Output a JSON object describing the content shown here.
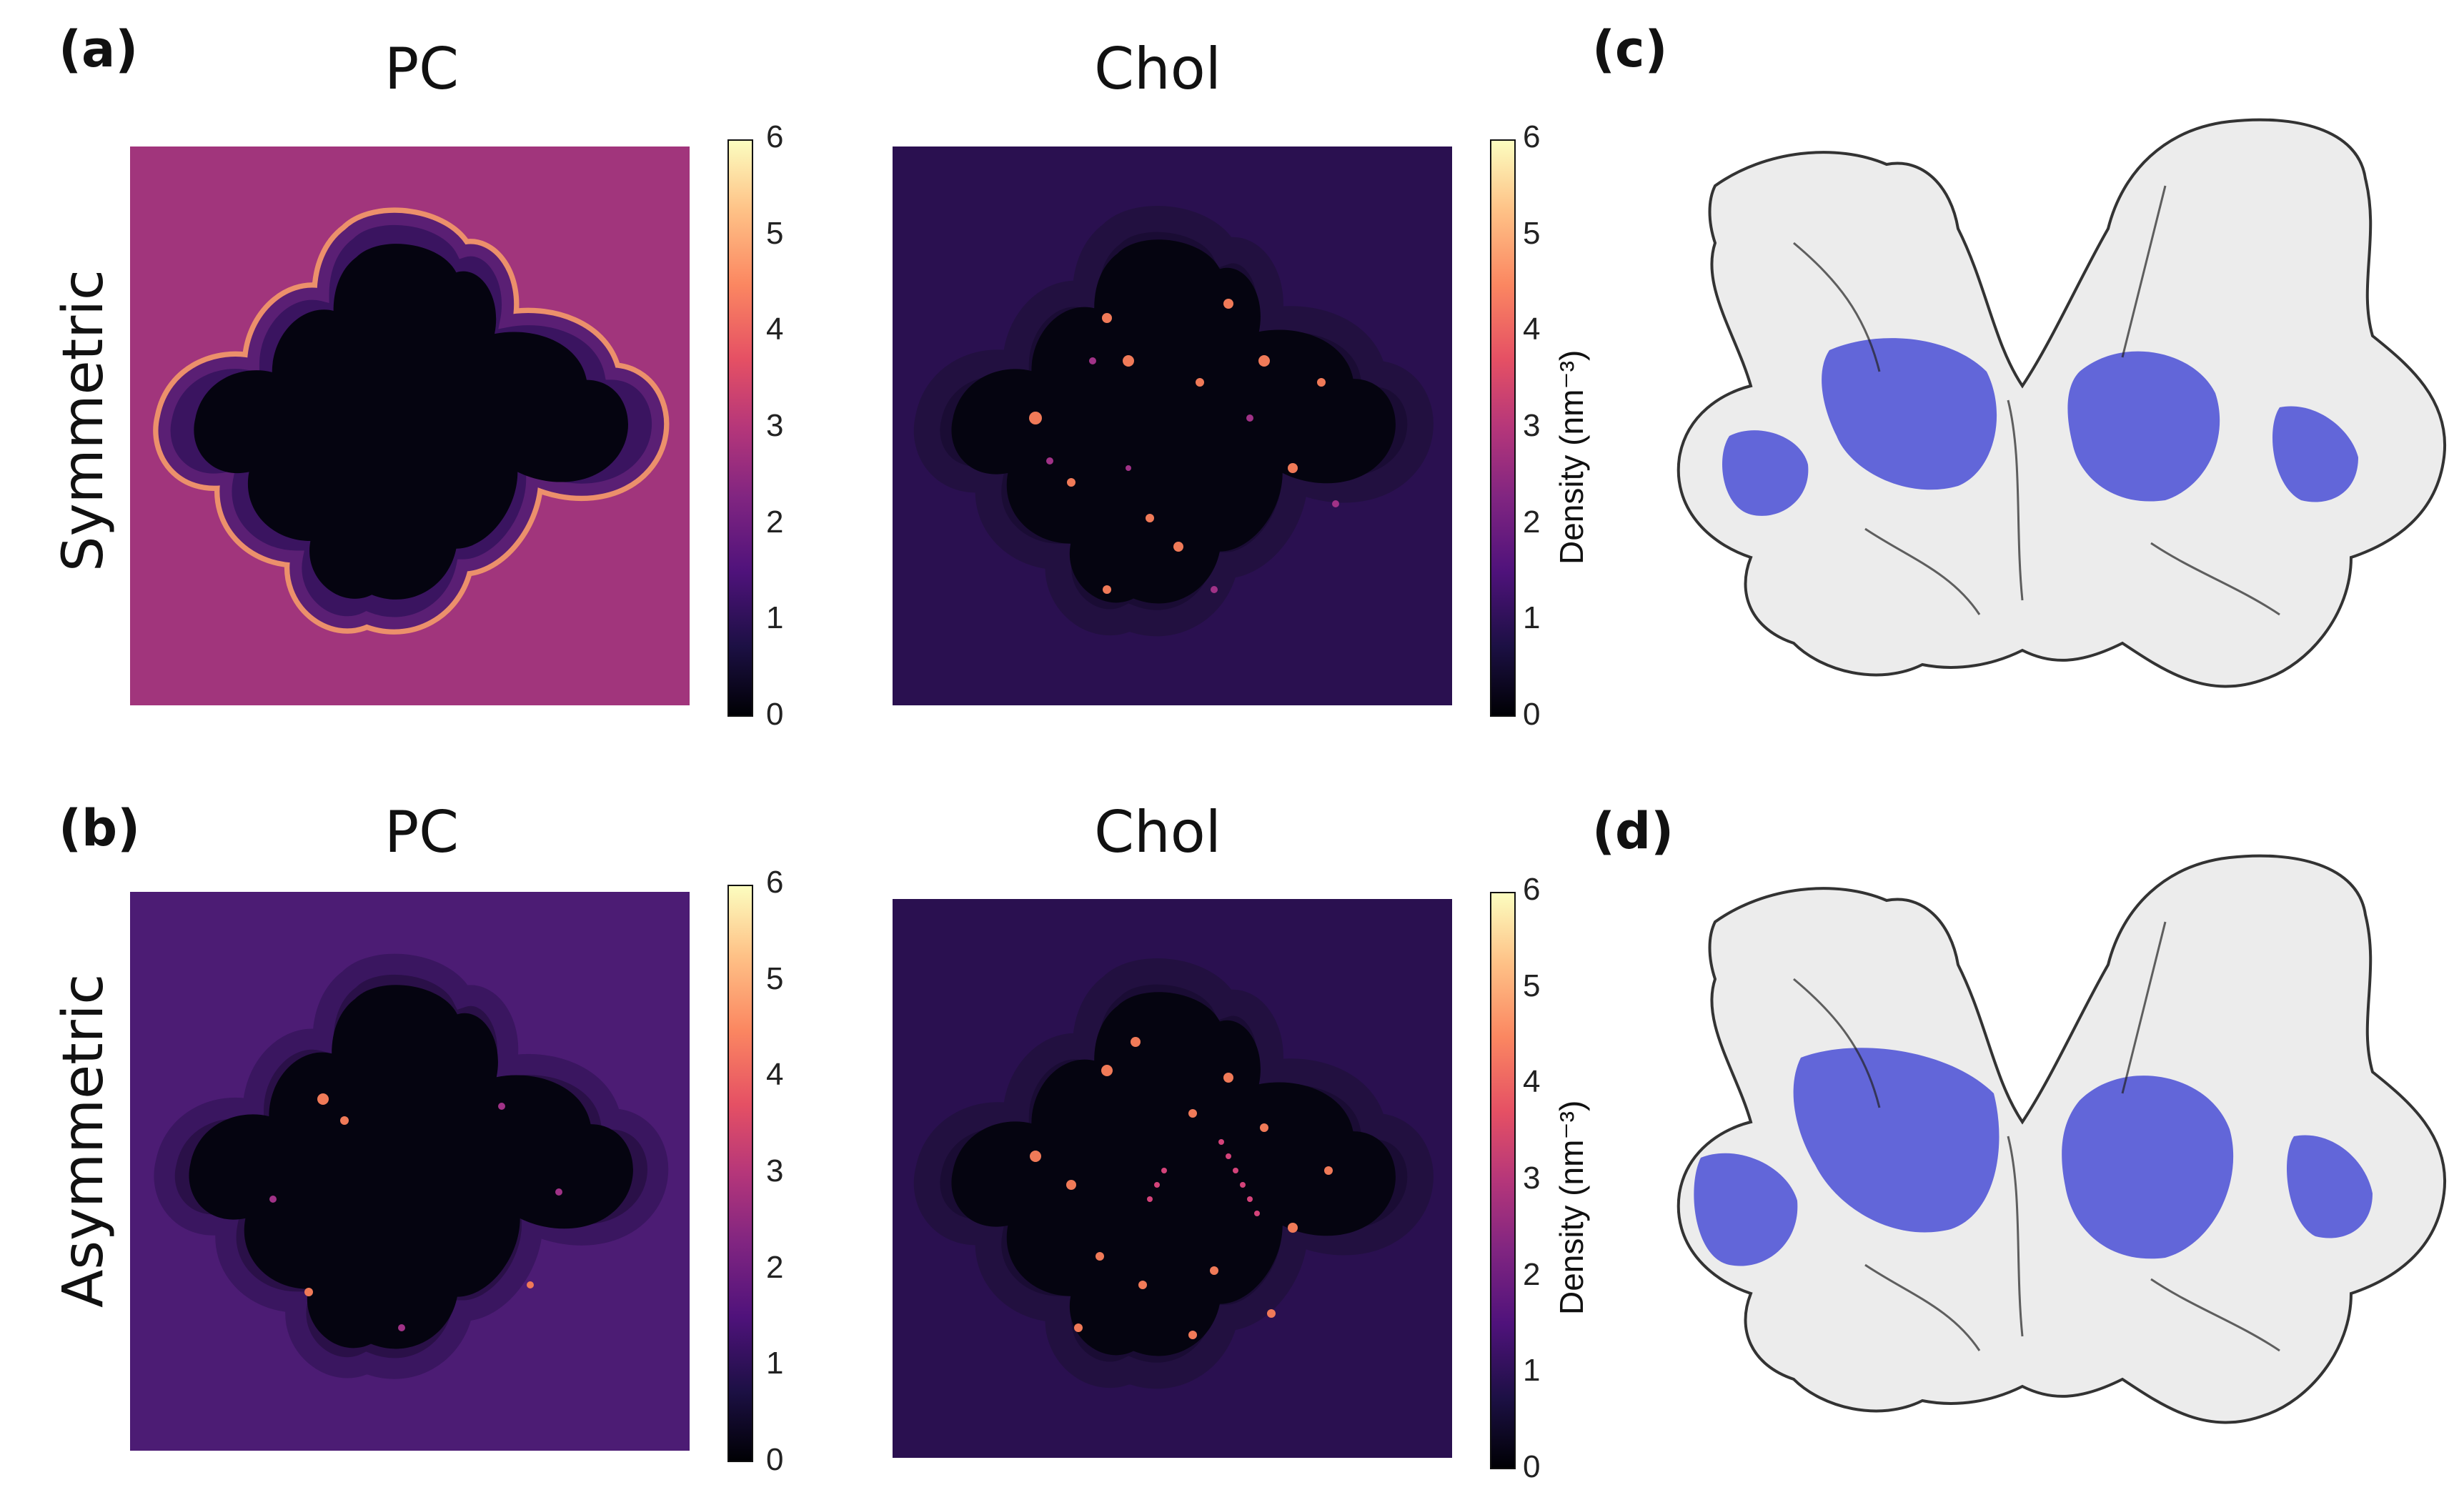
{
  "figure": {
    "panel_labels": {
      "a": "(a)",
      "b": "(b)",
      "c": "(c)",
      "d": "(d)"
    },
    "row_labels": {
      "top": "Symmetric",
      "bottom": "Asymmetric"
    },
    "column_titles": {
      "pc": "PC",
      "chol": "Chol"
    },
    "colorbar": {
      "ticks": [
        "0",
        "1",
        "2",
        "3",
        "4",
        "5",
        "6"
      ],
      "label": "Density (nm⁻³)",
      "colormap": "magma",
      "range": [
        0,
        6
      ]
    },
    "heatmaps": [
      {
        "id": "sym-pc",
        "lipid": "PC",
        "membrane": "Symmetric",
        "bulk_density": 2.2
      },
      {
        "id": "sym-chol",
        "lipid": "Chol",
        "membrane": "Symmetric",
        "bulk_density": 0.7
      },
      {
        "id": "asym-pc",
        "lipid": "PC",
        "membrane": "Asymmetric",
        "bulk_density": 1.2
      },
      {
        "id": "asym-chol",
        "lipid": "Chol",
        "membrane": "Asymmetric",
        "bulk_density": 0.7
      }
    ],
    "colors": {
      "sym_pc_bg": "#a1357c",
      "asym_pc_bg": "#4c1c74",
      "chol_bg": "#2a1050",
      "hole": "#050410",
      "protein_surface": "#ececec",
      "protein_highlight": "#4a4fd6"
    }
  }
}
